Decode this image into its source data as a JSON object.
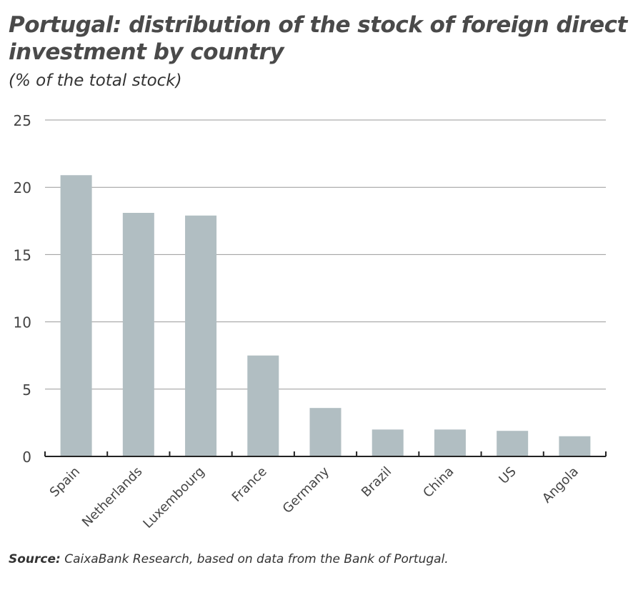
{
  "chart_data": {
    "type": "bar",
    "title": "Portugal: distribution of the stock of foreign direct investment by country",
    "subtitle": "(% of the total stock)",
    "categories": [
      "Spain",
      "Netherlands",
      "Luxembourg",
      "France",
      "Germany",
      "Brazil",
      "China",
      "US",
      "Angola"
    ],
    "values": [
      20.9,
      18.1,
      17.9,
      7.5,
      3.6,
      2.0,
      2.0,
      1.9,
      1.5
    ],
    "ylim": [
      0,
      25
    ],
    "yticks": [
      0,
      5,
      10,
      15,
      20,
      25
    ],
    "grid": true,
    "xlabel": "",
    "ylabel": "",
    "bar_color": "#b1bec2"
  },
  "source": {
    "label": "Source:",
    "text": " CaixaBank Research, based on data from the Bank of Portugal."
  }
}
